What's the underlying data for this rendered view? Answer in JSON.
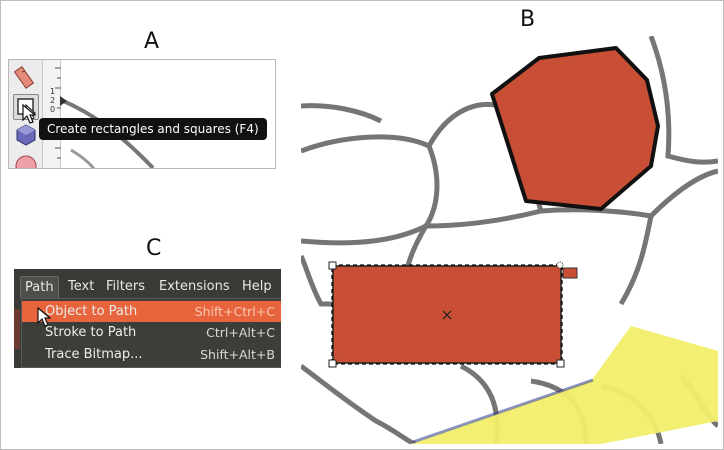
{
  "labels": {
    "a": "A",
    "b": "B",
    "c": "C"
  },
  "panel_a": {
    "tooltip": "Create rectangles and squares (F4)",
    "ruler_numbers": [
      "1",
      "2",
      "0"
    ],
    "tools": [
      "measure-tool-icon",
      "rectangle-tool-icon",
      "3d-box-tool-icon",
      "ellipse-tool-icon"
    ]
  },
  "panel_c": {
    "menu": [
      "Path",
      "Text",
      "Filters",
      "Extensions",
      "Help"
    ],
    "items": [
      {
        "label": "Object to Path",
        "shortcut": "Shift+Ctrl+C"
      },
      {
        "label": "Stroke to Path",
        "shortcut": "Ctrl+Alt+C"
      },
      {
        "label": "Trace Bitmap...",
        "shortcut": "Shift+Alt+B"
      }
    ]
  },
  "colors": {
    "fill_red": "#c84f36",
    "outline": "#111111",
    "yellow": "#f2ee6a",
    "menu_bg": "#3a3a36",
    "highlight": "#e8643c",
    "tooltip_bg": "#111111"
  }
}
